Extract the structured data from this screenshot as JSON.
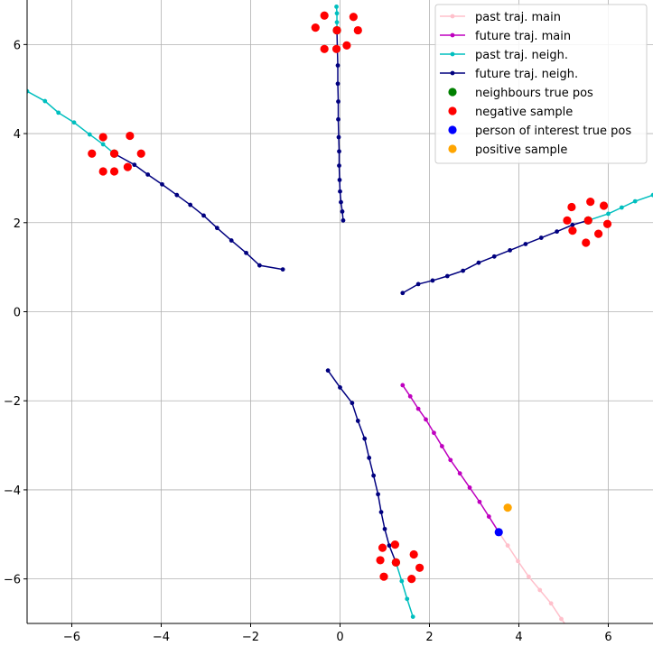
{
  "chart_data": {
    "type": "scatter",
    "title": "",
    "xlabel": "",
    "ylabel": "",
    "xlim": [
      -7,
      7
    ],
    "ylim": [
      -7,
      7
    ],
    "grid": true,
    "legend_placement": "top-right",
    "x_ticks": [
      -6,
      -4,
      -2,
      0,
      2,
      4,
      6
    ],
    "y_ticks": [
      -6,
      -4,
      -2,
      0,
      2,
      4,
      6
    ],
    "x_tick_labels": [
      "−6",
      "−4",
      "−2",
      "0",
      "2",
      "4",
      "6"
    ],
    "y_tick_labels": [
      "−6",
      "−4",
      "−2",
      "0",
      "2",
      "4",
      "6"
    ],
    "series": [
      {
        "name": "past traj. main",
        "kind": "line",
        "color": "#ffc0cb",
        "x": [
          3.55,
          3.75,
          3.98,
          4.22,
          4.47,
          4.72,
          4.95,
          5.1
        ],
        "y": [
          -4.95,
          -5.25,
          -5.6,
          -5.95,
          -6.25,
          -6.55,
          -6.9,
          -7.1
        ]
      },
      {
        "name": "future traj. main",
        "kind": "line",
        "color": "#bf00bf",
        "x": [
          1.4,
          1.57,
          1.75,
          1.92,
          2.1,
          2.28,
          2.47,
          2.68,
          2.9,
          3.12,
          3.33,
          3.55
        ],
        "y": [
          -1.65,
          -1.9,
          -2.18,
          -2.42,
          -2.72,
          -3.02,
          -3.33,
          -3.63,
          -3.95,
          -4.27,
          -4.6,
          -4.95
        ]
      },
      {
        "name": "past traj. neigh. A",
        "kind": "line",
        "color": "#00bfbf",
        "x": [
          -7.0,
          -6.6,
          -6.3,
          -5.95,
          -5.6,
          -5.3,
          -5.05
        ],
        "y": [
          4.95,
          4.73,
          4.47,
          4.25,
          3.98,
          3.76,
          3.55
        ]
      },
      {
        "name": "future traj. neigh. A",
        "kind": "line",
        "color": "#00007f",
        "x": [
          -5.05,
          -4.6,
          -4.3,
          -3.98,
          -3.65,
          -3.35,
          -3.05,
          -2.75,
          -2.43,
          -2.1,
          -1.8,
          -1.28
        ],
        "y": [
          3.55,
          3.3,
          3.08,
          2.86,
          2.62,
          2.4,
          2.16,
          1.88,
          1.6,
          1.32,
          1.04,
          0.95
        ]
      },
      {
        "name": "past traj. neigh. B",
        "kind": "line",
        "color": "#00bfbf",
        "x": [
          -0.08,
          -0.07,
          -0.07,
          -0.07
        ],
        "y": [
          6.85,
          6.7,
          6.5,
          6.32
        ]
      },
      {
        "name": "future traj. neigh. B",
        "kind": "line",
        "color": "#00007f",
        "x": [
          -0.07,
          -0.06,
          -0.05,
          -0.05,
          -0.04,
          -0.04,
          -0.03,
          -0.02,
          -0.02,
          -0.01,
          0.0,
          0.02,
          0.05,
          0.07
        ],
        "y": [
          6.32,
          5.92,
          5.53,
          5.12,
          4.72,
          4.32,
          3.92,
          3.6,
          3.28,
          2.96,
          2.7,
          2.46,
          2.25,
          2.05
        ]
      },
      {
        "name": "past traj. neigh. C",
        "kind": "line",
        "color": "#00bfbf",
        "x": [
          7.0,
          6.6,
          6.3,
          6.0,
          5.55
        ],
        "y": [
          2.62,
          2.48,
          2.34,
          2.2,
          2.05
        ]
      },
      {
        "name": "future traj. neigh. C",
        "kind": "line",
        "color": "#00007f",
        "x": [
          5.55,
          5.2,
          4.85,
          4.5,
          4.15,
          3.8,
          3.45,
          3.1,
          2.75,
          2.4,
          2.07,
          1.75,
          1.4
        ],
        "y": [
          2.05,
          1.95,
          1.8,
          1.66,
          1.52,
          1.38,
          1.24,
          1.1,
          0.92,
          0.8,
          0.7,
          0.62,
          0.42
        ]
      },
      {
        "name": "past traj. neigh. D",
        "kind": "line",
        "color": "#00bfbf",
        "x": [
          1.63,
          1.5,
          1.38,
          1.25
        ],
        "y": [
          -6.85,
          -6.45,
          -6.05,
          -5.63
        ]
      },
      {
        "name": "future traj. neigh. D",
        "kind": "line",
        "color": "#00007f",
        "x": [
          1.25,
          1.1,
          1.0,
          0.92,
          0.85,
          0.75,
          0.65,
          0.55,
          0.4,
          0.27,
          0.0,
          -0.27
        ],
        "y": [
          -5.63,
          -5.25,
          -4.88,
          -4.5,
          -4.1,
          -3.68,
          -3.28,
          -2.85,
          -2.45,
          -2.05,
          -1.7,
          -1.32
        ]
      },
      {
        "name": "neighbours true pos",
        "kind": "scatter",
        "color": "#008000",
        "x": [
          -5.05,
          -0.07,
          5.55,
          1.25
        ],
        "y": [
          3.55,
          6.32,
          2.05,
          -5.63
        ]
      },
      {
        "name": "negative sample",
        "kind": "scatter",
        "color": "#ff0000",
        "x": [
          -5.05,
          -5.3,
          -5.55,
          -5.3,
          -5.05,
          -4.75,
          -4.45,
          -4.7,
          -0.07,
          -0.35,
          -0.55,
          -0.35,
          -0.08,
          0.15,
          0.4,
          0.3,
          5.55,
          5.18,
          5.08,
          5.2,
          5.6,
          5.9,
          5.98,
          5.78,
          5.5,
          1.25,
          0.95,
          0.9,
          0.98,
          1.23,
          1.65,
          1.78,
          1.6
        ],
        "y": [
          3.55,
          3.92,
          3.55,
          3.15,
          3.15,
          3.25,
          3.55,
          3.95,
          6.32,
          6.65,
          6.38,
          5.9,
          5.9,
          5.98,
          6.32,
          6.62,
          2.05,
          2.35,
          2.05,
          1.82,
          2.47,
          2.38,
          1.97,
          1.75,
          1.55,
          -5.63,
          -5.3,
          -5.58,
          -5.95,
          -5.23,
          -5.45,
          -5.75,
          -6.0
        ]
      },
      {
        "name": "person of interest true pos",
        "kind": "scatter",
        "color": "#0000ff",
        "x": [
          3.55
        ],
        "y": [
          -4.95
        ]
      },
      {
        "name": "positive sample",
        "kind": "scatter",
        "color": "#ffa500",
        "x": [
          3.75
        ],
        "y": [
          -4.4
        ]
      }
    ],
    "legend": [
      {
        "label": "past traj. main",
        "kind": "line",
        "color": "#ffc0cb"
      },
      {
        "label": "future traj. main",
        "kind": "line",
        "color": "#bf00bf"
      },
      {
        "label": "past traj. neigh.",
        "kind": "line",
        "color": "#00bfbf"
      },
      {
        "label": "future traj. neigh.",
        "kind": "line",
        "color": "#00007f"
      },
      {
        "label": "neighbours true pos",
        "kind": "scatter",
        "color": "#008000"
      },
      {
        "label": "negative sample",
        "kind": "scatter",
        "color": "#ff0000"
      },
      {
        "label": "person of interest true pos",
        "kind": "scatter",
        "color": "#0000ff"
      },
      {
        "label": "positive sample",
        "kind": "scatter",
        "color": "#ffa500"
      }
    ]
  }
}
